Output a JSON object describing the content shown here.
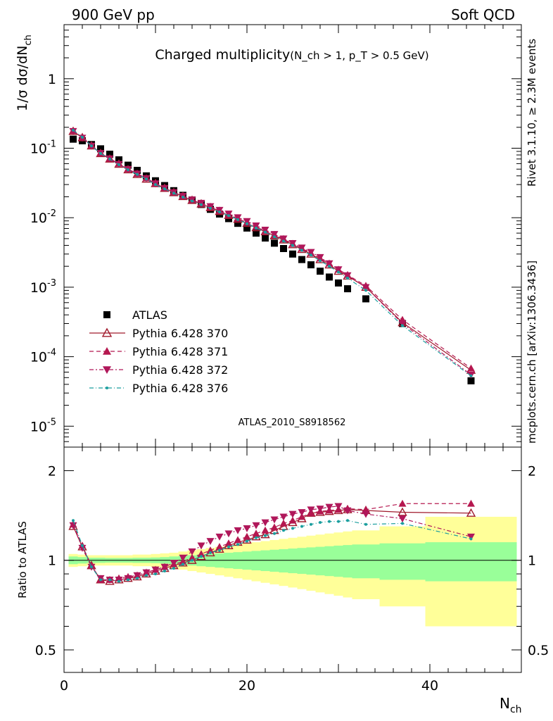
{
  "header": {
    "left": "900 GeV pp",
    "right": "Soft QCD"
  },
  "side_labels": {
    "rivet": "Rivet 3.1.10, ≥ 2.3M events",
    "mcplots": "mcplots.cern.ch [arXiv:1306.3436]"
  },
  "chart_data": [
    {
      "type": "scatter",
      "title": "Charged multiplicity(N_ch > 1, p_T > 0.5 GeV)",
      "title_main": "Charged multiplicity",
      "title_cond": "(N_ch > 1, p_T > 0.5 GeV)",
      "ylabel": "1/σ dσ/dN_ch",
      "ylabel_main": "1/σ dσ/dN",
      "ylabel_sub": "ch",
      "yscale": "log",
      "ylim": [
        5e-06,
        6
      ],
      "xlim": [
        0,
        50
      ],
      "analysis_label": "ATLAS_2010_S8918562",
      "y_tick_labels": [
        {
          "v": 1,
          "mant": "1",
          "exp": ""
        },
        {
          "v": 0.1,
          "mant": "10",
          "exp": "-1"
        },
        {
          "v": 0.01,
          "mant": "10",
          "exp": "-2"
        },
        {
          "v": 0.001,
          "mant": "10",
          "exp": "-3"
        },
        {
          "v": 0.0001,
          "mant": "10",
          "exp": "-4"
        },
        {
          "v": 1e-05,
          "mant": "10",
          "exp": "-5"
        }
      ],
      "legend_position": "bottom-left",
      "x": [
        1,
        2,
        3,
        4,
        5,
        6,
        7,
        8,
        9,
        10,
        11,
        12,
        13,
        14,
        15,
        16,
        17,
        18,
        19,
        20,
        21,
        22,
        23,
        24,
        25,
        26,
        27,
        28,
        29,
        30,
        31,
        33,
        37,
        44.5
      ],
      "series": [
        {
          "name": "ATLAS",
          "color": "#000000",
          "marker": "square",
          "values": [
            0.135,
            0.128,
            0.113,
            0.098,
            0.082,
            0.068,
            0.057,
            0.048,
            0.04,
            0.034,
            0.029,
            0.0245,
            0.021,
            0.018,
            0.0155,
            0.0132,
            0.0113,
            0.0097,
            0.0083,
            0.0071,
            0.006,
            0.0051,
            0.0043,
            0.0036,
            0.003,
            0.0025,
            0.0021,
            0.0017,
            0.0014,
            0.00115,
            0.00095,
            0.00068,
            0.0003,
            4.5e-05
          ]
        },
        {
          "name": "Pythia 6.428 370",
          "color": "#a01a2c",
          "marker": "triangle-open",
          "dash": "",
          "values": [
            0.175,
            0.142,
            0.108,
            0.084,
            0.07,
            0.059,
            0.049,
            0.042,
            0.036,
            0.031,
            0.0265,
            0.023,
            0.0202,
            0.0178,
            0.0158,
            0.014,
            0.0123,
            0.0108,
            0.0095,
            0.0083,
            0.0072,
            0.0063,
            0.0055,
            0.0048,
            0.0041,
            0.0035,
            0.003,
            0.0025,
            0.0021,
            0.0017,
            0.00145,
            0.001,
            0.00031,
            6.4e-05
          ]
        },
        {
          "name": "Pythia 6.428 371",
          "color": "#b5174f",
          "marker": "triangle",
          "dash": "6,4",
          "values": [
            0.178,
            0.143,
            0.109,
            0.085,
            0.071,
            0.06,
            0.05,
            0.043,
            0.037,
            0.031,
            0.0268,
            0.0232,
            0.0204,
            0.018,
            0.016,
            0.0142,
            0.0125,
            0.011,
            0.0097,
            0.0085,
            0.0074,
            0.0064,
            0.0056,
            0.0049,
            0.0042,
            0.0036,
            0.0031,
            0.0026,
            0.0022,
            0.0018,
            0.0015,
            0.00105,
            0.00034,
            6.8e-05
          ]
        },
        {
          "name": "Pythia 6.428 372",
          "color": "#b0175a",
          "marker": "triangle-down",
          "dash": "6,3,2,3",
          "values": [
            0.176,
            0.141,
            0.108,
            0.085,
            0.071,
            0.059,
            0.05,
            0.043,
            0.037,
            0.031,
            0.0267,
            0.0232,
            0.0205,
            0.0182,
            0.0163,
            0.0146,
            0.0129,
            0.0114,
            0.0101,
            0.0089,
            0.0077,
            0.0067,
            0.0058,
            0.005,
            0.0043,
            0.0037,
            0.0032,
            0.0027,
            0.0022,
            0.0018,
            0.00148,
            0.001,
            0.0003,
            5.5e-05
          ]
        },
        {
          "name": "Pythia 6.428 376",
          "color": "#1a9e9e",
          "marker": "dot",
          "dash": "6,3,1,3",
          "values": [
            0.182,
            0.144,
            0.108,
            0.084,
            0.07,
            0.058,
            0.049,
            0.042,
            0.036,
            0.03,
            0.026,
            0.0225,
            0.0198,
            0.0174,
            0.0154,
            0.0137,
            0.0121,
            0.0107,
            0.0094,
            0.0082,
            0.0071,
            0.0062,
            0.0053,
            0.0046,
            0.004,
            0.0034,
            0.0029,
            0.0024,
            0.002,
            0.00165,
            0.00135,
            0.0009,
            0.00028,
            5.3e-05
          ]
        }
      ]
    },
    {
      "type": "scatter",
      "title": "",
      "ylabel": "Ratio to ATLAS",
      "xlabel": "N_ch",
      "xlabel_main": "N",
      "xlabel_sub": "ch",
      "yscale": "log",
      "ylim": [
        0.42,
        2.4
      ],
      "xlim": [
        0,
        50
      ],
      "y_tick_labels": [
        {
          "v": 2,
          "label": "2"
        },
        {
          "v": 1,
          "label": "1"
        },
        {
          "v": 0.5,
          "label": "0.5"
        }
      ],
      "x_tick_labels": [
        {
          "v": 0,
          "label": "0"
        },
        {
          "v": 20,
          "label": "20"
        },
        {
          "v": 40,
          "label": "40"
        }
      ],
      "uncertainty_bands": {
        "edges": [
          0.5,
          1.5,
          2.5,
          3.5,
          4.5,
          5.5,
          6.5,
          7.5,
          8.5,
          9.5,
          10.5,
          11.5,
          12.5,
          13.5,
          14.5,
          15.5,
          16.5,
          17.5,
          18.5,
          19.5,
          20.5,
          21.5,
          22.5,
          23.5,
          24.5,
          25.5,
          26.5,
          27.5,
          28.5,
          29.5,
          30.5,
          31.5,
          34.5,
          39.5,
          49.5
        ],
        "inner_color": "#99ff99",
        "outer_color": "#ffff99",
        "inner": [
          0.03,
          0.025,
          0.02,
          0.02,
          0.018,
          0.018,
          0.018,
          0.02,
          0.02,
          0.022,
          0.025,
          0.03,
          0.035,
          0.04,
          0.045,
          0.05,
          0.055,
          0.06,
          0.065,
          0.07,
          0.075,
          0.08,
          0.085,
          0.09,
          0.095,
          0.1,
          0.105,
          0.11,
          0.115,
          0.12,
          0.125,
          0.13,
          0.14,
          0.15
        ],
        "outer": [
          0.05,
          0.045,
          0.04,
          0.04,
          0.04,
          0.04,
          0.04,
          0.045,
          0.045,
          0.05,
          0.055,
          0.06,
          0.07,
          0.08,
          0.09,
          0.1,
          0.11,
          0.12,
          0.13,
          0.14,
          0.15,
          0.16,
          0.17,
          0.18,
          0.19,
          0.2,
          0.21,
          0.22,
          0.23,
          0.24,
          0.25,
          0.26,
          0.3,
          0.4
        ]
      },
      "x": [
        1,
        2,
        3,
        4,
        5,
        6,
        7,
        8,
        9,
        10,
        11,
        12,
        13,
        14,
        15,
        16,
        17,
        18,
        19,
        20,
        21,
        22,
        23,
        24,
        25,
        26,
        27,
        28,
        29,
        30,
        31,
        33,
        37,
        44.5
      ],
      "series": [
        {
          "name": "Pythia 6.428 370",
          "color": "#a01a2c",
          "marker": "triangle-open",
          "dash": "",
          "values": [
            1.3,
            1.11,
            0.96,
            0.86,
            0.85,
            0.86,
            0.87,
            0.88,
            0.9,
            0.92,
            0.94,
            0.96,
            0.98,
            1.0,
            1.03,
            1.06,
            1.09,
            1.12,
            1.15,
            1.17,
            1.2,
            1.22,
            1.26,
            1.3,
            1.34,
            1.38,
            1.44,
            1.45,
            1.46,
            1.47,
            1.48,
            1.47,
            1.45,
            1.44
          ]
        },
        {
          "name": "Pythia 6.428 371",
          "color": "#b5174f",
          "marker": "triangle",
          "dash": "6,4",
          "values": [
            1.32,
            1.12,
            0.96,
            0.86,
            0.86,
            0.87,
            0.88,
            0.89,
            0.91,
            0.93,
            0.95,
            0.97,
            0.99,
            1.02,
            1.05,
            1.08,
            1.11,
            1.14,
            1.17,
            1.2,
            1.23,
            1.26,
            1.29,
            1.33,
            1.36,
            1.4,
            1.44,
            1.46,
            1.47,
            1.48,
            1.49,
            1.48,
            1.55,
            1.55
          ]
        },
        {
          "name": "Pythia 6.428 372",
          "color": "#b0175a",
          "marker": "triangle-down",
          "dash": "6,3,2,3",
          "values": [
            1.31,
            1.1,
            0.95,
            0.87,
            0.86,
            0.86,
            0.87,
            0.89,
            0.91,
            0.93,
            0.95,
            0.98,
            1.02,
            1.07,
            1.12,
            1.16,
            1.2,
            1.23,
            1.26,
            1.28,
            1.31,
            1.34,
            1.37,
            1.4,
            1.43,
            1.45,
            1.48,
            1.49,
            1.51,
            1.52,
            1.47,
            1.43,
            1.38,
            1.2
          ]
        },
        {
          "name": "Pythia 6.428 376",
          "color": "#1a9e9e",
          "marker": "dot",
          "dash": "6,3,1,3",
          "values": [
            1.36,
            1.12,
            0.95,
            0.86,
            0.86,
            0.85,
            0.86,
            0.87,
            0.89,
            0.9,
            0.92,
            0.94,
            0.97,
            1.0,
            1.03,
            1.06,
            1.08,
            1.11,
            1.13,
            1.16,
            1.19,
            1.21,
            1.23,
            1.26,
            1.28,
            1.3,
            1.32,
            1.34,
            1.35,
            1.35,
            1.36,
            1.32,
            1.33,
            1.18
          ]
        }
      ]
    }
  ]
}
